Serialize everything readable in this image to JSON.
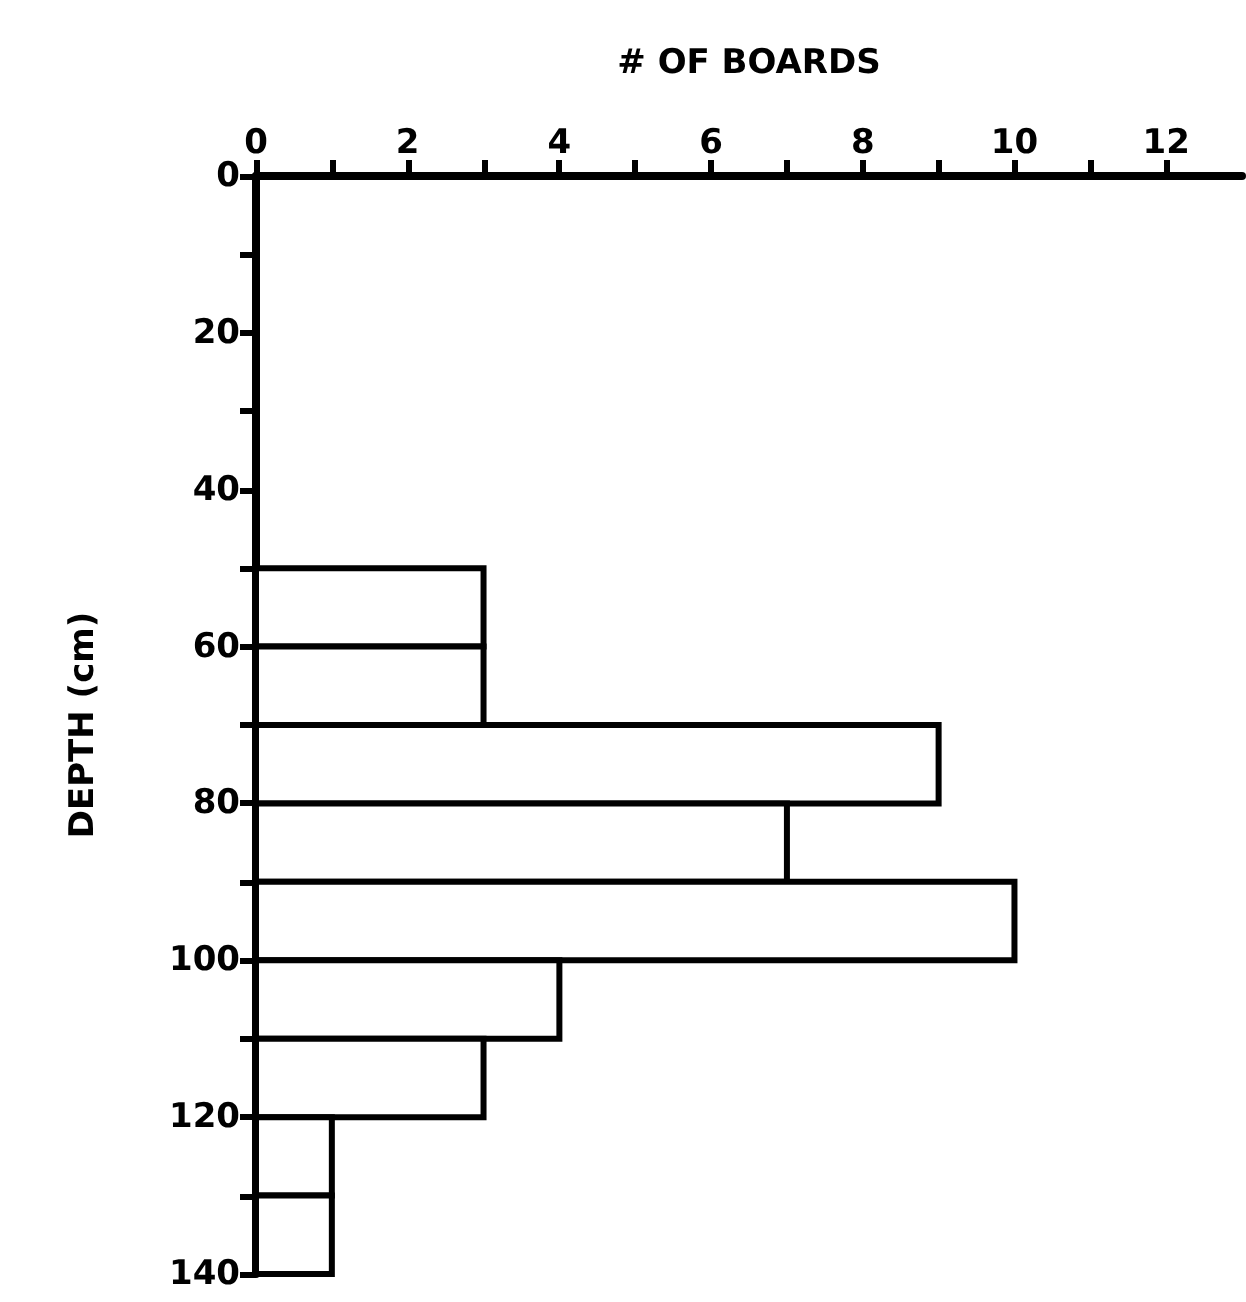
{
  "chart_data": {
    "type": "histogram",
    "orientation": "horizontal",
    "xlabel": "# OF BOARDS",
    "ylabel": "DEPTH (cm)",
    "bins": [
      50,
      60,
      70,
      80,
      90,
      100,
      110,
      120,
      130,
      140
    ],
    "values": [
      3,
      3,
      9,
      7,
      10,
      4,
      3,
      1,
      1
    ],
    "color": "#ffffff",
    "xlim": [
      0,
      13
    ],
    "xticks": [
      0,
      {
        "value": 1,
        "label": null
      },
      2,
      {
        "value": 3,
        "label": null
      },
      4,
      {
        "value": 5,
        "label": null
      },
      6,
      {
        "value": 7,
        "label": null
      },
      8,
      {
        "value": 9,
        "label": null
      },
      10,
      {
        "value": 11,
        "label": null
      },
      12
    ],
    "ylim": [
      140,
      0
    ],
    "yticks": [
      0,
      {
        "value": 10,
        "label": null
      },
      20,
      {
        "value": 30,
        "label": null
      },
      40,
      {
        "value": 50,
        "label": null
      },
      60,
      {
        "value": 70,
        "label": null
      },
      80,
      {
        "value": 90,
        "label": null
      },
      100,
      {
        "value": 110,
        "label": null
      },
      120,
      {
        "value": 130,
        "label": null
      },
      140
    ],
    "grid": false
  }
}
